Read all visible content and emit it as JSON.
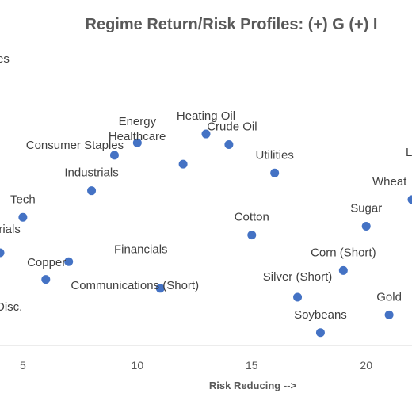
{
  "chart_data": {
    "type": "scatter",
    "title": "Regime Return/Risk Profiles: (+) G (+) I",
    "xlabel": "Risk Reducing -->",
    "ylabel": "",
    "x_ticks": [
      5,
      10,
      15,
      20
    ],
    "xlim": [
      4,
      22
    ],
    "ylim": [
      0,
      13
    ],
    "grid": false,
    "marker_color": "#4472C4",
    "points": [
      {
        "label": "Energy",
        "x": 10,
        "y": 10.8
      },
      {
        "label": "Heating Oil",
        "x": 13,
        "y": 11.3
      },
      {
        "label": "Crude Oil",
        "x": 14,
        "y": 10.7
      },
      {
        "label": "Healthcare",
        "x": 12,
        "y": 9.6
      },
      {
        "label": "Consumer Staples",
        "x": 9,
        "y": 10.1
      },
      {
        "label": "Utilities",
        "x": 16,
        "y": 9.1
      },
      {
        "label": "Industrials",
        "x": 8,
        "y": 8.1
      },
      {
        "label": "Tech",
        "x": 5,
        "y": 6.6
      },
      {
        "label": "Wheat",
        "x": 22,
        "y": 7.6
      },
      {
        "label": "Cotton",
        "x": 15,
        "y": 5.6
      },
      {
        "label": "Sugar",
        "x": 20,
        "y": 6.1
      },
      {
        "label": "Materials",
        "x": 4,
        "y": 4.6
      },
      {
        "label": "Copper",
        "x": 7,
        "y": 4.1
      },
      {
        "label": "Financials",
        "x": 6,
        "y": 3.1
      },
      {
        "label": "Corn (Short)",
        "x": 19,
        "y": 3.6
      },
      {
        "label": "Communications (Short)",
        "x": 11,
        "y": 2.6
      },
      {
        "label": "Silver (Short)",
        "x": 17,
        "y": 2.1
      },
      {
        "label": "Gold",
        "x": 21,
        "y": 1.1
      },
      {
        "label": "Soybeans",
        "x": 18,
        "y": 0.1
      }
    ],
    "cropped_labels": [
      {
        "text": "es"
      },
      {
        "text": "erials"
      },
      {
        "text": "Disc."
      },
      {
        "text": "L"
      }
    ]
  }
}
